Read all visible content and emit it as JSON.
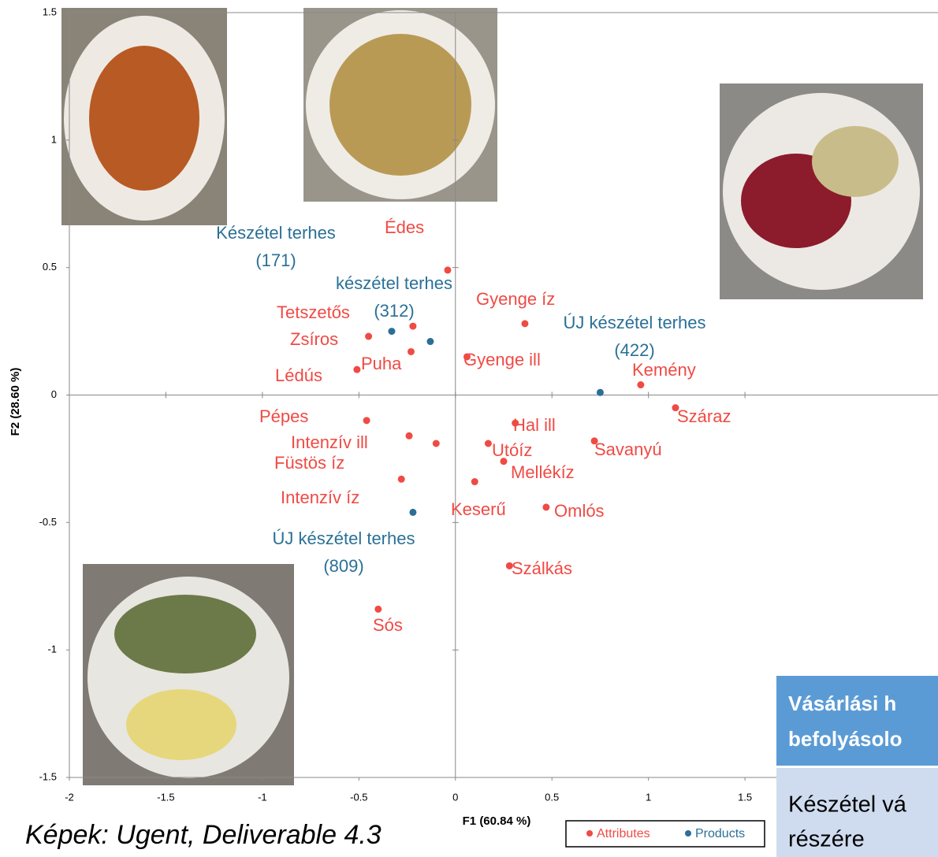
{
  "chart_data": {
    "type": "scatter",
    "xlabel": "F1 (60.84 %)",
    "ylabel": "F2 (28.60 %)",
    "xlim": [
      -2,
      2.5
    ],
    "ylim": [
      -1.5,
      1.5
    ],
    "xticks": [
      -2,
      -1.5,
      -1,
      -0.5,
      0,
      0.5,
      1,
      1.5
    ],
    "yticks": [
      -1.5,
      -1,
      -0.5,
      0,
      0.5,
      1,
      1.5
    ],
    "grid": false,
    "series": [
      {
        "name": "Attributes",
        "color": "#f04a44",
        "labels": [
          "Édes",
          "Gyenge íz",
          "Tetszetős",
          "Zsíros",
          "Puha",
          "Lédús",
          "Gyenge ill",
          "Kemény",
          "Száraz",
          "Pépes",
          "Hal ill",
          "Intenzív ill",
          "Füstös íz",
          "Savanyú",
          "Utóíz",
          "Mellékíz",
          "Intenzív  íz",
          "Keserű",
          "Omlós",
          "Szálkás",
          "Sós"
        ],
        "x": [
          -0.04,
          0.36,
          -0.22,
          -0.45,
          -0.23,
          -0.51,
          0.06,
          0.96,
          1.14,
          -0.46,
          0.31,
          -0.24,
          -0.1,
          0.72,
          0.17,
          0.25,
          -0.28,
          0.1,
          0.47,
          0.28,
          -0.4
        ],
        "y": [
          0.49,
          0.28,
          0.27,
          0.23,
          0.17,
          0.1,
          0.15,
          0.04,
          -0.05,
          -0.1,
          -0.11,
          -0.16,
          -0.19,
          -0.18,
          -0.19,
          -0.26,
          -0.33,
          -0.34,
          -0.44,
          -0.67,
          -0.84
        ]
      },
      {
        "name": "Products",
        "color": "#2a7096",
        "labels": [
          [
            "Készétel terhes",
            "(171)"
          ],
          [
            "készétel terhes",
            "(312)"
          ],
          [
            "ÚJ készétel terhes",
            "(422)"
          ],
          [
            "ÚJ készétel terhes",
            "(809)"
          ]
        ],
        "x": [
          -0.33,
          -0.13,
          0.75,
          -0.22
        ],
        "y": [
          0.25,
          0.21,
          0.01,
          -0.46
        ]
      }
    ]
  },
  "caption": "Képek: Ugent, Deliverable 4.3",
  "overlay": {
    "heading": [
      "Vásárlási h",
      "befolyásolo"
    ],
    "body": [
      "Készétel vá",
      "részére"
    ]
  }
}
